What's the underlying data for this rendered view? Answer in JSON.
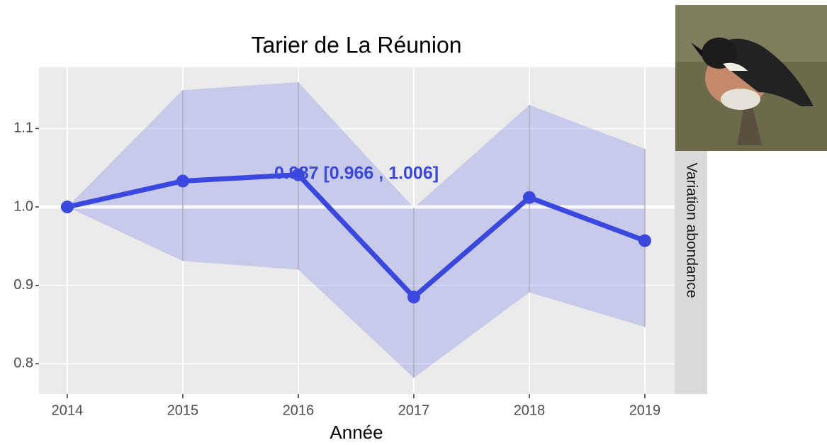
{
  "chart_data": {
    "type": "line",
    "title": "Tarier de La Réunion",
    "x_label": "Année",
    "facet_label": "Variation abondance",
    "x": [
      2014,
      2015,
      2016,
      2017,
      2018,
      2019
    ],
    "values": [
      1.0,
      1.033,
      1.041,
      0.885,
      1.012,
      0.957
    ],
    "lower": [
      1.0,
      0.931,
      0.92,
      0.782,
      0.891,
      0.847
    ],
    "upper": [
      1.0,
      1.149,
      1.159,
      0.999,
      1.13,
      1.074
    ],
    "color": "#3b48e0",
    "ribbon_color": "#3b48e0",
    "reference_line": 1.0,
    "annotation": "0.987  [0.966 , 1.006]",
    "xlim": [
      2013.755,
      2019.258
    ],
    "xticks": [
      2014,
      2015,
      2016,
      2017,
      2018,
      2019
    ],
    "ylim": [
      0.7615,
      1.178
    ],
    "yticks": [
      0.8,
      0.9,
      {
        "value": 1.0,
        "label": "1.0"
      },
      1.1
    ],
    "grid": true
  }
}
